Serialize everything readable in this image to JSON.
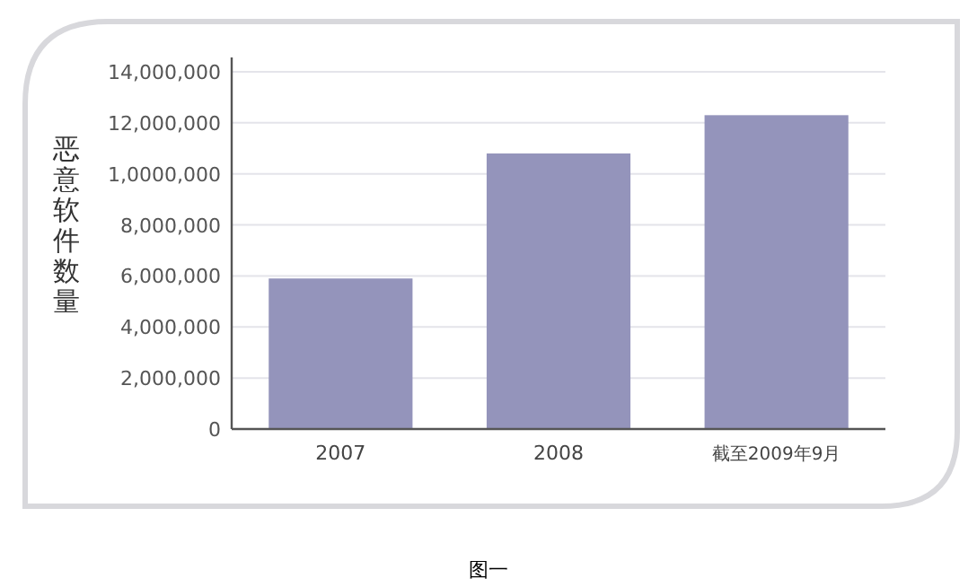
{
  "chart_data": {
    "type": "bar",
    "ylabel": "恶意软件数量",
    "categories": [
      "2007",
      "2008",
      "截至2009年9月"
    ],
    "values": [
      5900000,
      10800000,
      12300000
    ],
    "color": "#9494bb",
    "ylim": [
      0,
      14000000
    ],
    "yticks": [
      {
        "value": 0,
        "label": "0"
      },
      {
        "value": 2000000,
        "label": "2,000,000"
      },
      {
        "value": 4000000,
        "label": "4,000,000"
      },
      {
        "value": 6000000,
        "label": "6,000,000"
      },
      {
        "value": 8000000,
        "label": "8,000,000"
      },
      {
        "value": 10000000,
        "label": "1,0000,000"
      },
      {
        "value": 12000000,
        "label": "12,000,000"
      },
      {
        "value": 14000000,
        "label": "14,000,000"
      }
    ],
    "grid": "y",
    "annotations": [
      "图一"
    ]
  }
}
